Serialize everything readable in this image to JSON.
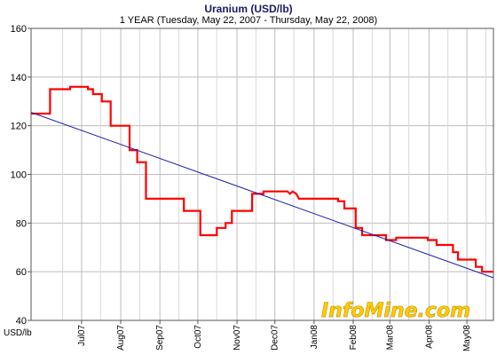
{
  "chart_data": {
    "type": "line",
    "title": "Uranium (USD/lb)",
    "subtitle": "1 YEAR (Tuesday, May 22, 2007  -  Thursday, May 22, 2008)",
    "ylabel": "USD/lb",
    "ylim": [
      40,
      160
    ],
    "yticks": [
      40,
      60,
      80,
      100,
      120,
      140,
      160
    ],
    "xlim": [
      "2007-05-22",
      "2008-05-22"
    ],
    "xticks": [
      {
        "label": "Jul07",
        "date": "2007-07-01"
      },
      {
        "label": "Aug07",
        "date": "2007-08-01"
      },
      {
        "label": "Sep07",
        "date": "2007-09-01"
      },
      {
        "label": "Oct07",
        "date": "2007-10-01"
      },
      {
        "label": "Nov07",
        "date": "2007-11-01"
      },
      {
        "label": "Dec07",
        "date": "2007-12-01"
      },
      {
        "label": "Jan08",
        "date": "2008-01-01"
      },
      {
        "label": "Feb08",
        "date": "2008-02-01"
      },
      {
        "label": "Mar08",
        "date": "2008-03-01"
      },
      {
        "label": "Apr08",
        "date": "2008-04-01"
      },
      {
        "label": "May08",
        "date": "2008-05-01"
      }
    ],
    "grid": true,
    "series": [
      {
        "type": "line",
        "color": "#ff0000",
        "points": [
          [
            "2007-05-22",
            125
          ],
          [
            "2007-06-06",
            125
          ],
          [
            "2007-06-06",
            135
          ],
          [
            "2007-06-22",
            135
          ],
          [
            "2007-06-22",
            136
          ],
          [
            "2007-07-06",
            136
          ],
          [
            "2007-07-06",
            135
          ],
          [
            "2007-07-10",
            135
          ],
          [
            "2007-07-10",
            133
          ],
          [
            "2007-07-17",
            133
          ],
          [
            "2007-07-17",
            130
          ],
          [
            "2007-07-24",
            130
          ],
          [
            "2007-07-24",
            120
          ],
          [
            "2007-08-08",
            120
          ],
          [
            "2007-08-08",
            110
          ],
          [
            "2007-08-14",
            110
          ],
          [
            "2007-08-14",
            105
          ],
          [
            "2007-08-21",
            105
          ],
          [
            "2007-08-21",
            90
          ],
          [
            "2007-09-20",
            90
          ],
          [
            "2007-09-20",
            85
          ],
          [
            "2007-10-03",
            85
          ],
          [
            "2007-10-03",
            75
          ],
          [
            "2007-10-16",
            75
          ],
          [
            "2007-10-16",
            78
          ],
          [
            "2007-10-23",
            78
          ],
          [
            "2007-10-23",
            80
          ],
          [
            "2007-10-28",
            80
          ],
          [
            "2007-10-28",
            85
          ],
          [
            "2007-11-13",
            85
          ],
          [
            "2007-11-13",
            92
          ],
          [
            "2007-11-22",
            92
          ],
          [
            "2007-11-22",
            93
          ],
          [
            "2007-12-11",
            93
          ],
          [
            "2007-12-13",
            92
          ],
          [
            "2007-12-15",
            93
          ],
          [
            "2007-12-18",
            92
          ],
          [
            "2007-12-20",
            90
          ],
          [
            "2008-01-20",
            90
          ],
          [
            "2008-01-20",
            89
          ],
          [
            "2008-01-25",
            89
          ],
          [
            "2008-01-25",
            86
          ],
          [
            "2008-02-03",
            86
          ],
          [
            "2008-02-03",
            78
          ],
          [
            "2008-02-08",
            78
          ],
          [
            "2008-02-08",
            75
          ],
          [
            "2008-02-27",
            75
          ],
          [
            "2008-02-27",
            73
          ],
          [
            "2008-03-06",
            73
          ],
          [
            "2008-03-06",
            74
          ],
          [
            "2008-03-31",
            74
          ],
          [
            "2008-03-31",
            73
          ],
          [
            "2008-04-07",
            73
          ],
          [
            "2008-04-07",
            71
          ],
          [
            "2008-04-20",
            71
          ],
          [
            "2008-04-20",
            68
          ],
          [
            "2008-04-24",
            68
          ],
          [
            "2008-04-24",
            65
          ],
          [
            "2008-05-08",
            65
          ],
          [
            "2008-05-08",
            62
          ],
          [
            "2008-05-13",
            62
          ],
          [
            "2008-05-13",
            60
          ],
          [
            "2008-05-22",
            60
          ]
        ]
      },
      {
        "type": "trend",
        "color": "#1e1eaa",
        "points": [
          [
            "2007-05-22",
            125.5
          ],
          [
            "2008-05-22",
            57.5
          ]
        ]
      }
    ]
  },
  "watermark": "InfoMine.com"
}
